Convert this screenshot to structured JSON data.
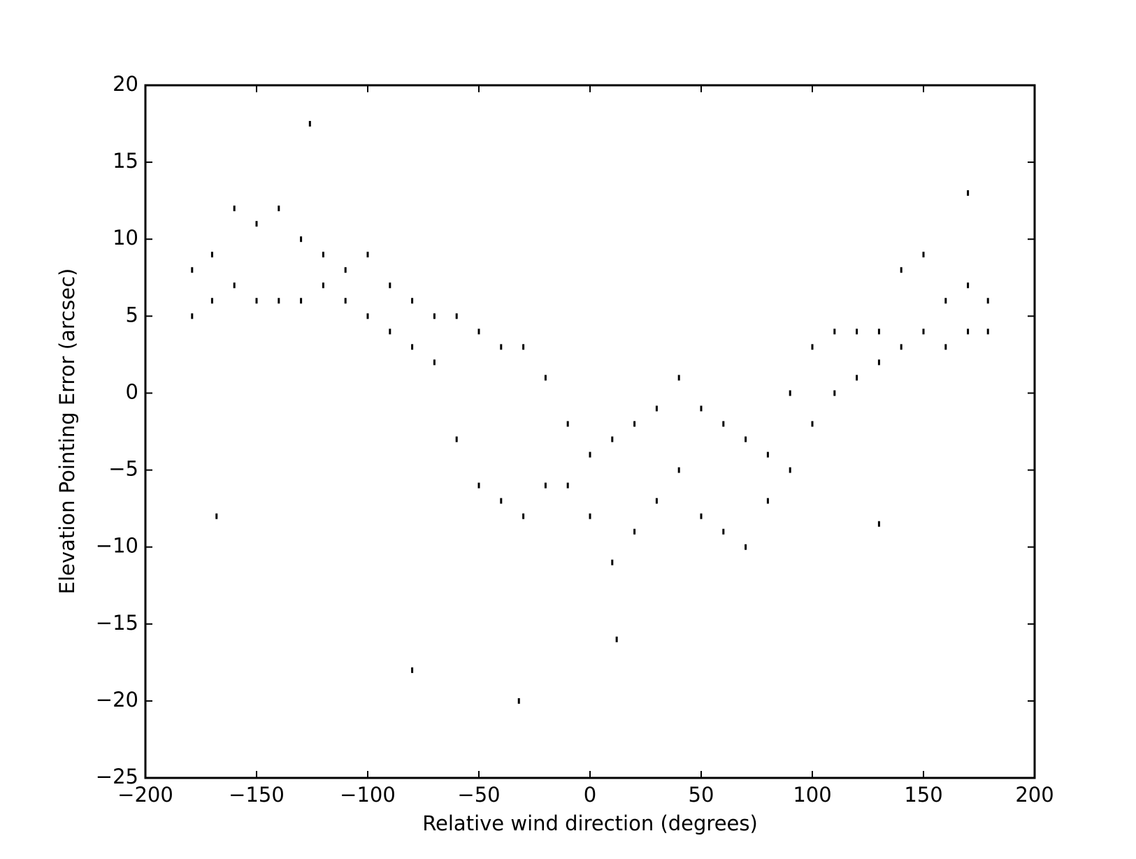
{
  "chart_data": {
    "type": "scatter",
    "xlabel": "Relative wind direction (degrees)",
    "ylabel": "Elevation Pointing Error (arcsec)",
    "xlim": [
      -200,
      200
    ],
    "ylim": [
      -25,
      20
    ],
    "xticks": [
      {
        "value": -200,
        "label": "−200"
      },
      {
        "value": -150,
        "label": "−150"
      },
      {
        "value": -100,
        "label": "−100"
      },
      {
        "value": -50,
        "label": "−50"
      },
      0,
      50,
      100,
      150,
      200
    ],
    "yticks": [
      {
        "value": -25,
        "label": "−25"
      },
      {
        "value": -20,
        "label": "−20"
      },
      {
        "value": -15,
        "label": "−15"
      },
      {
        "value": -10,
        "label": "−10"
      },
      {
        "value": -5,
        "label": "−5"
      },
      0,
      5,
      10,
      15,
      20
    ],
    "color": "#000000",
    "x": [
      -179,
      -170,
      -160,
      -150,
      -140,
      -130,
      -120,
      -110,
      -100,
      -90,
      -80,
      -70,
      -60,
      -50,
      -40,
      -30,
      -20,
      -10,
      0,
      10,
      20,
      30,
      40,
      50,
      60,
      70,
      80,
      90,
      100,
      110,
      120,
      130,
      140,
      150,
      160,
      170,
      179,
      -179,
      -170,
      -160,
      -150,
      -140,
      -130,
      -120,
      -110,
      -100,
      -90,
      -80,
      -70,
      -60,
      -50,
      -40,
      -30,
      -20,
      -10,
      0,
      10,
      20,
      30,
      40,
      50,
      60,
      70,
      80,
      90,
      100,
      110,
      120,
      130,
      140,
      150,
      160,
      170,
      179,
      -168,
      -80,
      -32,
      12,
      130,
      -126,
      170
    ],
    "y": [
      8,
      9,
      12,
      11,
      12,
      10,
      9,
      8,
      9,
      7,
      6,
      5,
      5,
      4,
      3,
      3,
      1,
      -2,
      -4,
      -3,
      -2,
      -1,
      1,
      -1,
      -2,
      -3,
      -4,
      0,
      3,
      4,
      4,
      4,
      8,
      9,
      6,
      7,
      6,
      5,
      6,
      7,
      6,
      6,
      6,
      7,
      6,
      5,
      4,
      3,
      2,
      -3,
      -6,
      -7,
      -8,
      -6,
      -6,
      -8,
      -11,
      -9,
      -7,
      -5,
      -8,
      -9,
      -10,
      -7,
      -5,
      -2,
      0,
      1,
      2,
      3,
      4,
      3,
      4,
      4,
      -8,
      -18,
      -20,
      -16,
      -8.5,
      17.5,
      13
    ]
  }
}
